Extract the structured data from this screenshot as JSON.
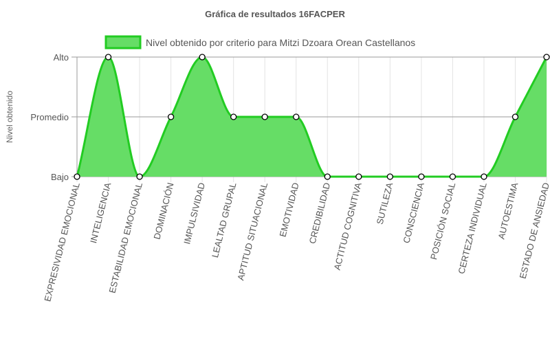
{
  "chart_data": {
    "type": "area",
    "title": "Gráfica de resultados 16FACPER",
    "ylabel": "Nivel obtenido",
    "xlabel": "",
    "y_levels": [
      "Bajo",
      "Promedio",
      "Alto"
    ],
    "ylim": [
      0,
      2
    ],
    "categories": [
      "EXPRESIVIDAD EMOCIONAL",
      "INTELIGENCIA",
      "ESTABILIDAD EMOCIONAL",
      "DOMINACIÓN",
      "IMPULSIVIDAD",
      "LEALTAD GRUPAL",
      "APTITUD SITUACIONAL",
      "EMOTIVIDAD",
      "CREDIBILIDAD",
      "ACTITUD COGNITIVA",
      "SUTILEZA",
      "CONSCIENCIA",
      "POSICIÓN SOCIAL",
      "CERTEZA INDIVIDUAL",
      "AUTOESTIMA",
      "ESTADO DE ANSIEDAD"
    ],
    "series": [
      {
        "name": "Nivel obtenido por criterio para Mitzi Dzoara Orean Castellanos",
        "values": [
          0,
          2,
          0,
          1,
          2,
          1,
          1,
          1,
          0,
          0,
          0,
          0,
          0,
          0,
          1,
          2
        ],
        "color": "#22cc22",
        "fill": "#66dd66"
      }
    ],
    "grid": true,
    "legend_position": "top"
  }
}
